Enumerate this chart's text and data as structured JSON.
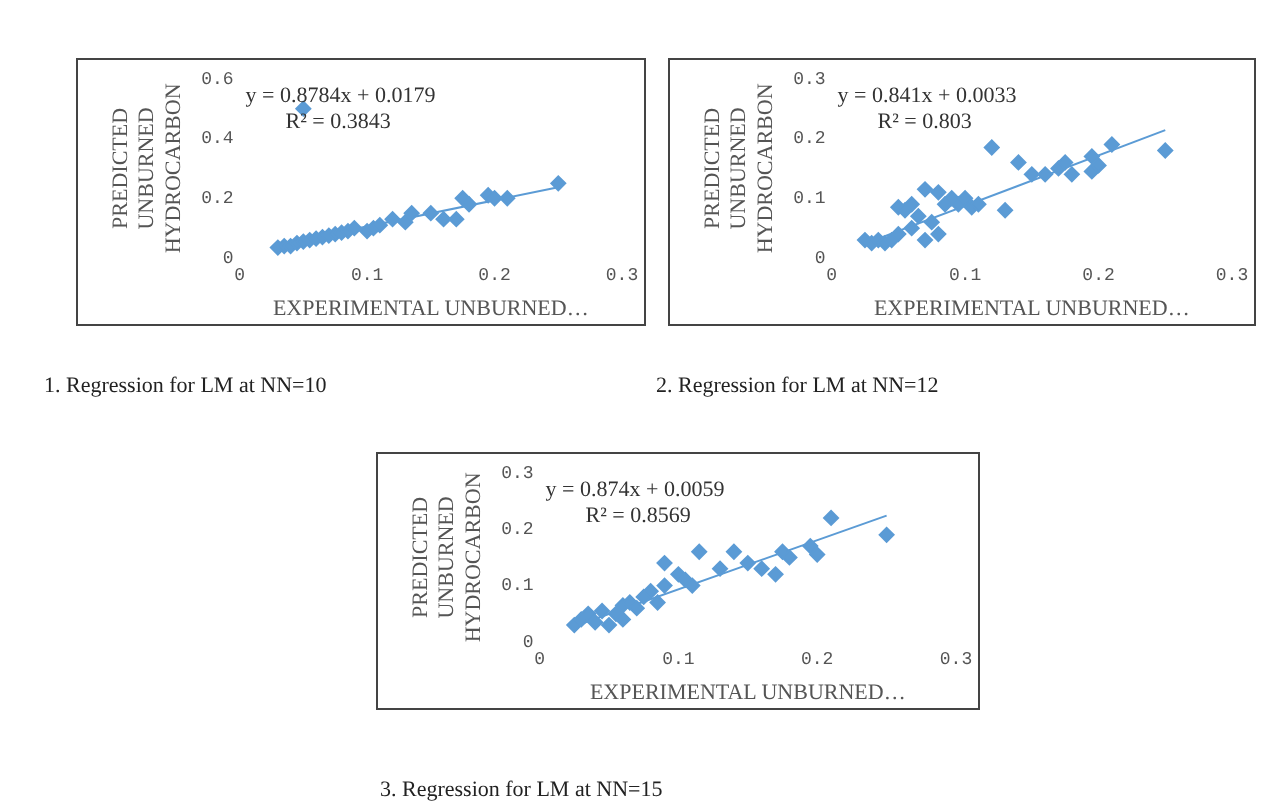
{
  "chart_data": [
    {
      "type": "scatter",
      "xlabel": "EXPERIMENTAL UNBURNED…",
      "ylabel": "PREDICTED UNBURNED HYDROCARBON",
      "xlim": [
        0,
        0.3
      ],
      "xticks": [
        0,
        0.1,
        0.2,
        0.3
      ],
      "ylim": [
        0,
        0.6
      ],
      "yticks": [
        0,
        0.2,
        0.4,
        0.6
      ],
      "grid": false,
      "legend": false,
      "marker": "diamond",
      "annotations": [
        "y = 0.8784x + 0.0179",
        "R² = 0.3843",
        "1.   Regression for LM at NN=10"
      ],
      "series": [
        {
          "type": "scatter",
          "color": "#5b9bd5",
          "x": [
            0.03,
            0.035,
            0.04,
            0.045,
            0.05,
            0.05,
            0.055,
            0.06,
            0.065,
            0.07,
            0.075,
            0.08,
            0.085,
            0.09,
            0.1,
            0.105,
            0.11,
            0.12,
            0.13,
            0.135,
            0.15,
            0.16,
            0.17,
            0.175,
            0.18,
            0.195,
            0.2,
            0.21,
            0.25
          ],
          "values": [
            0.035,
            0.04,
            0.04,
            0.05,
            0.055,
            0.5,
            0.06,
            0.065,
            0.07,
            0.075,
            0.08,
            0.085,
            0.09,
            0.1,
            0.09,
            0.1,
            0.11,
            0.13,
            0.12,
            0.15,
            0.15,
            0.13,
            0.13,
            0.2,
            0.18,
            0.21,
            0.2,
            0.2,
            0.25
          ]
        },
        {
          "type": "line",
          "color": "#5b9bd5",
          "marker": "none",
          "x": [
            0.027,
            0.25
          ],
          "values": [
            0.042,
            0.237
          ]
        }
      ]
    },
    {
      "type": "scatter",
      "xlabel": "EXPERIMENTAL UNBURNED…",
      "ylabel": "PREDICTED UNBURNED HYDROCARBON",
      "xlim": [
        0,
        0.3
      ],
      "xticks": [
        0,
        0.1,
        0.2,
        0.3
      ],
      "ylim": [
        0,
        0.3
      ],
      "yticks": [
        0,
        0.1,
        0.2,
        0.3
      ],
      "grid": false,
      "legend": false,
      "marker": "diamond",
      "annotations": [
        "y = 0.841x + 0.0033",
        "R² = 0.803",
        "2. Regression for LM at NN=12"
      ],
      "series": [
        {
          "type": "scatter",
          "color": "#5b9bd5",
          "x": [
            0.025,
            0.03,
            0.035,
            0.04,
            0.045,
            0.05,
            0.05,
            0.055,
            0.06,
            0.06,
            0.065,
            0.07,
            0.07,
            0.075,
            0.08,
            0.08,
            0.085,
            0.09,
            0.095,
            0.1,
            0.105,
            0.11,
            0.12,
            0.13,
            0.14,
            0.15,
            0.16,
            0.17,
            0.175,
            0.18,
            0.195,
            0.195,
            0.2,
            0.21,
            0.25
          ],
          "values": [
            0.03,
            0.025,
            0.03,
            0.025,
            0.03,
            0.04,
            0.085,
            0.08,
            0.05,
            0.09,
            0.07,
            0.115,
            0.03,
            0.06,
            0.11,
            0.04,
            0.09,
            0.1,
            0.09,
            0.1,
            0.085,
            0.09,
            0.185,
            0.08,
            0.16,
            0.14,
            0.14,
            0.15,
            0.16,
            0.14,
            0.17,
            0.145,
            0.155,
            0.19,
            0.18
          ]
        },
        {
          "type": "line",
          "color": "#5b9bd5",
          "marker": "none",
          "x": [
            0.025,
            0.25
          ],
          "values": [
            0.024,
            0.214
          ]
        }
      ]
    },
    {
      "type": "scatter",
      "xlabel": "EXPERIMENTAL UNBURNED…",
      "ylabel": "PREDICTED UNBURNED HYDROCARBON",
      "xlim": [
        0,
        0.3
      ],
      "xticks": [
        0,
        0.1,
        0.2,
        0.3
      ],
      "ylim": [
        0,
        0.3
      ],
      "yticks": [
        0,
        0.1,
        0.2,
        0.3
      ],
      "grid": false,
      "legend": false,
      "marker": "diamond",
      "annotations": [
        "y = 0.874x + 0.0059",
        "R² = 0.8569",
        "3. Regression for LM at NN=15"
      ],
      "series": [
        {
          "type": "scatter",
          "color": "#5b9bd5",
          "x": [
            0.025,
            0.03,
            0.035,
            0.04,
            0.045,
            0.05,
            0.055,
            0.06,
            0.06,
            0.065,
            0.07,
            0.075,
            0.08,
            0.085,
            0.09,
            0.09,
            0.1,
            0.105,
            0.11,
            0.115,
            0.13,
            0.14,
            0.15,
            0.16,
            0.17,
            0.175,
            0.18,
            0.195,
            0.2,
            0.21,
            0.25
          ],
          "values": [
            0.03,
            0.04,
            0.05,
            0.035,
            0.055,
            0.03,
            0.05,
            0.04,
            0.065,
            0.07,
            0.06,
            0.08,
            0.09,
            0.07,
            0.14,
            0.1,
            0.12,
            0.11,
            0.1,
            0.16,
            0.13,
            0.16,
            0.14,
            0.13,
            0.12,
            0.16,
            0.15,
            0.17,
            0.155,
            0.22,
            0.19
          ]
        },
        {
          "type": "line",
          "color": "#5b9bd5",
          "marker": "none",
          "x": [
            0.025,
            0.25
          ],
          "values": [
            0.028,
            0.224
          ]
        }
      ]
    }
  ]
}
